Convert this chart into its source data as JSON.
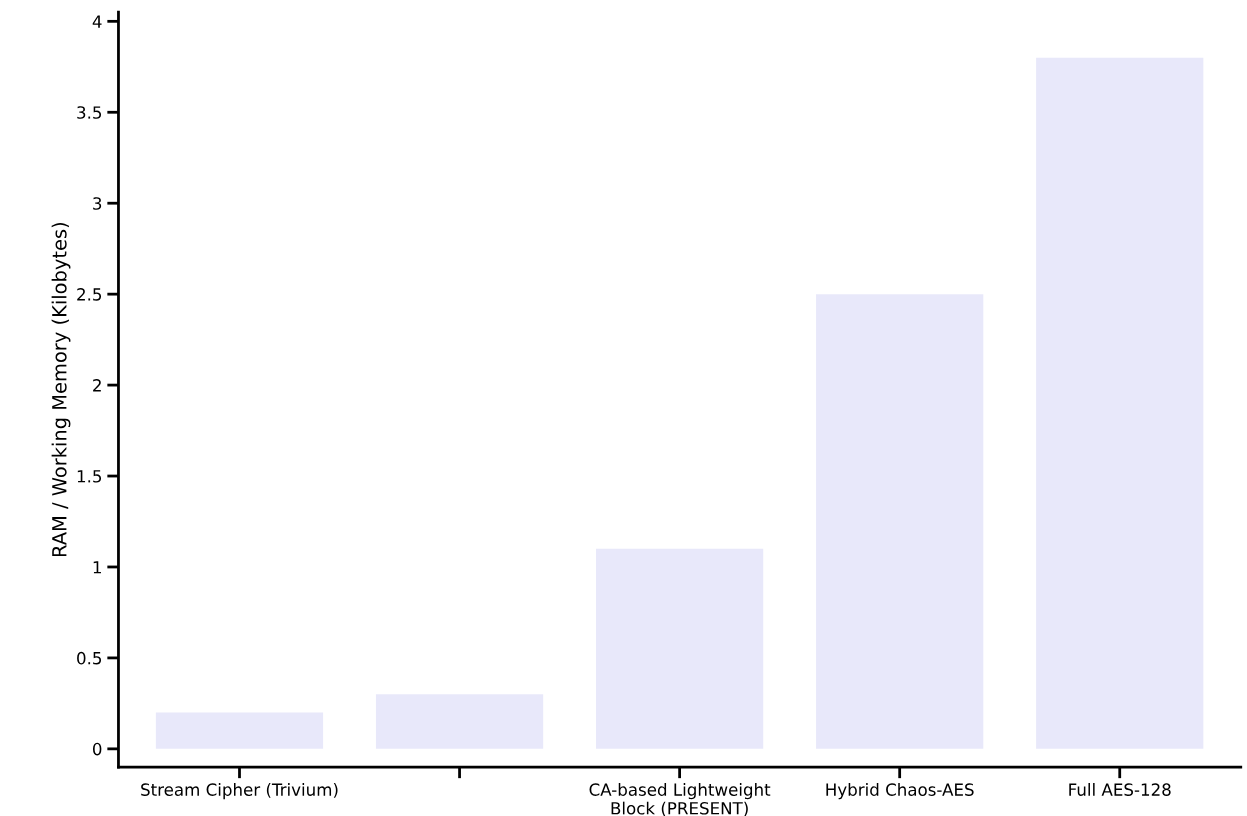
{
  "chart_data": {
    "type": "bar",
    "ylabel": "RAM / Working Memory (Kilobytes)",
    "categories": [
      "Stream Cipher (Trivium)",
      null,
      "CA-based Lightweight Block (PRESENT)",
      "Hybrid Chaos-AES",
      "Full AES-128"
    ],
    "values": [
      0.2,
      0.3,
      1.1,
      2.5,
      3.8
    ],
    "color": "#e8e8fa",
    "ylim": [
      -0.1,
      4.05
    ],
    "yticks": [
      0,
      0.5,
      1,
      1.5,
      2,
      2.5,
      3,
      3.5,
      4
    ],
    "grid": false
  }
}
